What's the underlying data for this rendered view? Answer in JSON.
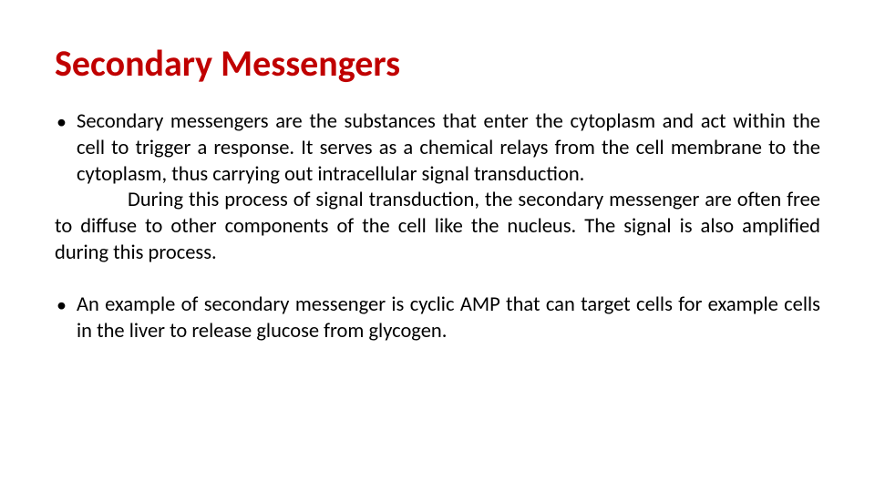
{
  "title": "Secondary Messengers",
  "title_color": "#c00000",
  "title_fontsize": 40,
  "body_fontsize": 22.5,
  "body_color": "#000000",
  "background_color": "#ffffff",
  "bullets": [
    {
      "marker": "•",
      "text": "Secondary messengers are the substances that enter the cytoplasm and act within the cell to trigger a response. It serves as a chemical relays from the cell membrane to the cytoplasm, thus carrying out intracellular signal transduction.",
      "continuation": "During this process of signal transduction, the secondary messenger are often free to diffuse to other components of the cell like the nucleus. The signal is also amplified during this process."
    },
    {
      "marker": "•",
      "text": "An example of secondary messenger is cyclic AMP that can target cells for example cells in the liver to release glucose from glycogen.",
      "continuation": null
    }
  ]
}
